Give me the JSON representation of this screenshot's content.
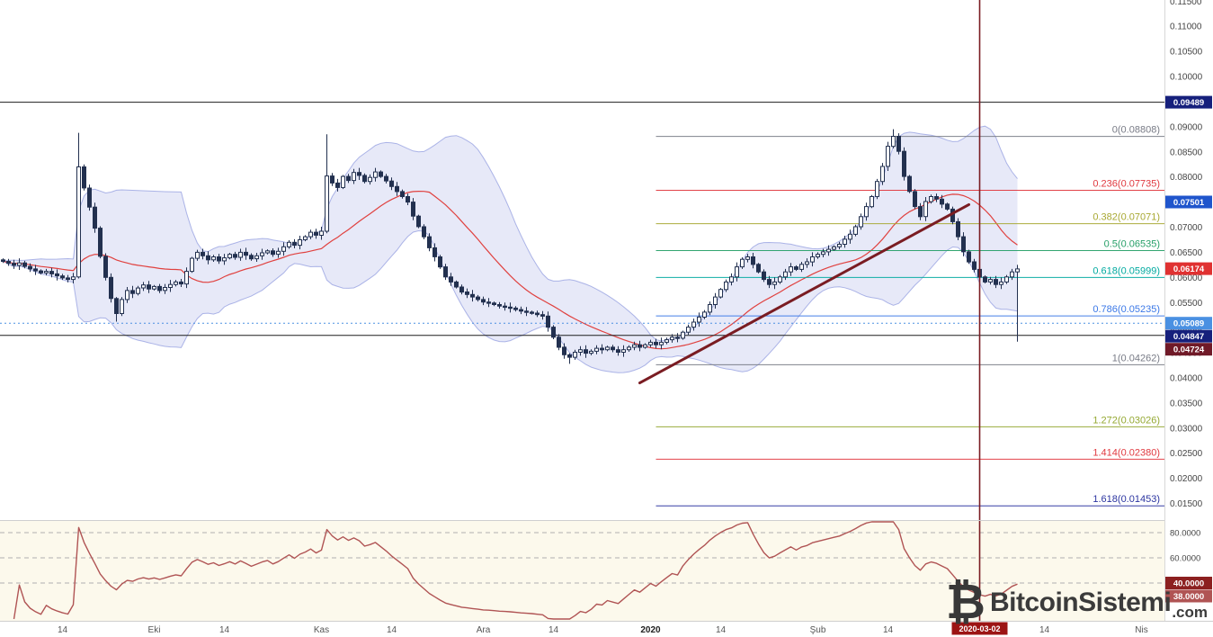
{
  "watermark": {
    "name": "BitcoinSistemi",
    "tld": ".com",
    "icon": "bitcoin-icon"
  },
  "chart_data": {
    "type": "candlestick",
    "interval": "1D",
    "indicators": [
      "bollinger-bands(20,2)",
      "rsi"
    ],
    "first_candle_date": "2019-09-03",
    "first_open": 0.0635,
    "closes": [
      0.0632,
      0.0628,
      0.0624,
      0.0629,
      0.0622,
      0.0617,
      0.0613,
      0.0609,
      0.0612,
      0.0607,
      0.0603,
      0.0599,
      0.0596,
      0.0601,
      0.082,
      0.0778,
      0.074,
      0.0698,
      0.0642,
      0.06,
      0.0558,
      0.0528,
      0.0556,
      0.0574,
      0.0568,
      0.0579,
      0.0585,
      0.0577,
      0.0582,
      0.0574,
      0.058,
      0.0586,
      0.0591,
      0.0587,
      0.0612,
      0.0638,
      0.065,
      0.0643,
      0.0635,
      0.0641,
      0.0633,
      0.0639,
      0.0646,
      0.064,
      0.065,
      0.0644,
      0.0637,
      0.0643,
      0.0649,
      0.0653,
      0.0646,
      0.0652,
      0.0661,
      0.067,
      0.0664,
      0.0675,
      0.0681,
      0.069,
      0.0684,
      0.0692,
      0.0802,
      0.0788,
      0.0779,
      0.0801,
      0.0793,
      0.0809,
      0.0803,
      0.0791,
      0.0799,
      0.081,
      0.0801,
      0.0792,
      0.0781,
      0.0771,
      0.0761,
      0.075,
      0.0722,
      0.0701,
      0.0681,
      0.0659,
      0.0641,
      0.0621,
      0.0601,
      0.0591,
      0.0581,
      0.0571,
      0.0566,
      0.0561,
      0.0556,
      0.0551,
      0.0549,
      0.0546,
      0.0543,
      0.0541,
      0.0539,
      0.0536,
      0.0533,
      0.0531,
      0.0529,
      0.0526,
      0.0523,
      0.0501,
      0.0481,
      0.0461,
      0.0446,
      0.0441,
      0.0451,
      0.0456,
      0.0449,
      0.0453,
      0.0459,
      0.0456,
      0.0461,
      0.0456,
      0.0451,
      0.0456,
      0.0461,
      0.0466,
      0.0461,
      0.0466,
      0.0471,
      0.0466,
      0.0471,
      0.0476,
      0.0481,
      0.0479,
      0.0491,
      0.0501,
      0.0511,
      0.0521,
      0.0531,
      0.0546,
      0.0561,
      0.0576,
      0.0591,
      0.0601,
      0.0621,
      0.0636,
      0.0641,
      0.0626,
      0.0611,
      0.0596,
      0.0586,
      0.0591,
      0.0601,
      0.0611,
      0.0621,
      0.0616,
      0.0626,
      0.0631,
      0.0641,
      0.0646,
      0.0651,
      0.0656,
      0.0661,
      0.0666,
      0.0676,
      0.0686,
      0.0701,
      0.0721,
      0.0741,
      0.0761,
      0.0791,
      0.0821,
      0.0861,
      0.0881,
      0.0851,
      0.0801,
      0.0771,
      0.0741,
      0.0721,
      0.0751,
      0.0761,
      0.0756,
      0.0746,
      0.0736,
      0.0711,
      0.0681,
      0.0651,
      0.0631,
      0.0616,
      0.0601,
      0.0591,
      0.0596,
      0.0586,
      0.0591,
      0.0601,
      0.0611,
      0.0617
    ],
    "wick_overrides": {
      "14": {
        "high": 0.0888
      },
      "21": {
        "low": 0.0512
      },
      "60": {
        "high": 0.0885
      },
      "105": {
        "low": 0.0428
      },
      "165": {
        "high": 0.0895
      },
      "188": {
        "low": 0.0472
      }
    },
    "price_axis": {
      "max": 0.11523,
      "min": 0.0117,
      "ticks": [
        "0.11500",
        "0.11000",
        "0.10500",
        "0.10000",
        "0.09500",
        "0.09000",
        "0.08500",
        "0.08000",
        "0.07500",
        "0.07000",
        "0.06500",
        "0.06000",
        "0.05500",
        "0.05000",
        "0.04500",
        "0.04000",
        "0.03500",
        "0.03000",
        "0.02500",
        "0.02000",
        "0.01500"
      ]
    },
    "price_badges": [
      {
        "value": "0.09489",
        "price": 0.09489,
        "color": "#16207c",
        "line": "solid"
      },
      {
        "value": "0.07501",
        "price": 0.07501,
        "color": "#1f55cc",
        "line": "none"
      },
      {
        "value": "0.06174",
        "price": 0.06174,
        "color": "#e03131",
        "line": "none",
        "role": "last-price"
      },
      {
        "value": "0.05089",
        "price": 0.05089,
        "color": "#4a90e2",
        "line": "dotted"
      },
      {
        "value": "0.04847",
        "price": 0.04847,
        "color": "#16207c",
        "line": "solid"
      },
      {
        "value": "0.04724",
        "price": 0.04724,
        "color": "#701a28",
        "line": "none"
      }
    ],
    "fibonacci": {
      "start_index": 121,
      "levels": [
        {
          "label": "0(0.08808)",
          "price": 0.08808,
          "color": "#787b86"
        },
        {
          "label": "0.236(0.07735)",
          "price": 0.07735,
          "color": "#e0393f"
        },
        {
          "label": "0.382(0.07071)",
          "price": 0.07071,
          "color": "#a8a832"
        },
        {
          "label": "0.5(0.06535)",
          "price": 0.06535,
          "color": "#28a069"
        },
        {
          "label": "0.618(0.05999)",
          "price": 0.05999,
          "color": "#00aaa0"
        },
        {
          "label": "0.786(0.05235)",
          "price": 0.05235,
          "color": "#3b78e7"
        },
        {
          "label": "1(0.04262)",
          "price": 0.04262,
          "color": "#787b86"
        },
        {
          "label": "1.272(0.03026)",
          "price": 0.03026,
          "color": "#94a832"
        },
        {
          "label": "1.414(0.02380)",
          "price": 0.0238,
          "color": "#e0393f"
        },
        {
          "label": "1.618(0.01453)",
          "price": 0.01453,
          "color": "#2b34a0"
        }
      ]
    },
    "trendline": {
      "x1_index": 118,
      "price1": 0.039,
      "x2_index": 179,
      "price2": 0.0745,
      "color": "#7a1c22"
    },
    "vertical_line": {
      "date": "2020-03-02",
      "index": 181,
      "color": "#7a1c22"
    },
    "time_axis": [
      {
        "label": "14",
        "index": 11
      },
      {
        "label": "Eki",
        "index": 28
      },
      {
        "label": "14",
        "index": 41
      },
      {
        "label": "Kas",
        "index": 59
      },
      {
        "label": "14",
        "index": 72
      },
      {
        "label": "Ara",
        "index": 89
      },
      {
        "label": "14",
        "index": 102
      },
      {
        "label": "2020",
        "index": 120,
        "emphasis": true
      },
      {
        "label": "14",
        "index": 133
      },
      {
        "label": "Şub",
        "index": 151
      },
      {
        "label": "14",
        "index": 164
      },
      {
        "label": "14",
        "index": 193
      },
      {
        "label": "Nis",
        "index": 211
      }
    ],
    "time_badge": {
      "label": "2020-03-02",
      "index": 181,
      "color": "#9c1414"
    },
    "bollinger": {
      "period": 20,
      "stdev": 2,
      "fill_color": "#6b79d6",
      "edge_color": "#8490dc",
      "basis_color": "#e0413f"
    },
    "rsi_panel": {
      "line_color": "#b05454",
      "background": "#fcf9ec",
      "scale_labels": [
        {
          "label": "80.0000",
          "level": 80
        },
        {
          "label": "60.0000",
          "level": 60
        },
        {
          "label": "40.0000",
          "level": 40
        }
      ],
      "dashed_levels": [
        80,
        60,
        40
      ],
      "badges": [
        {
          "value": "40.0000",
          "level": 40,
          "color": "#8c2020"
        },
        {
          "value": "38.0000",
          "level": 38,
          "color": "#b05454"
        }
      ]
    }
  }
}
